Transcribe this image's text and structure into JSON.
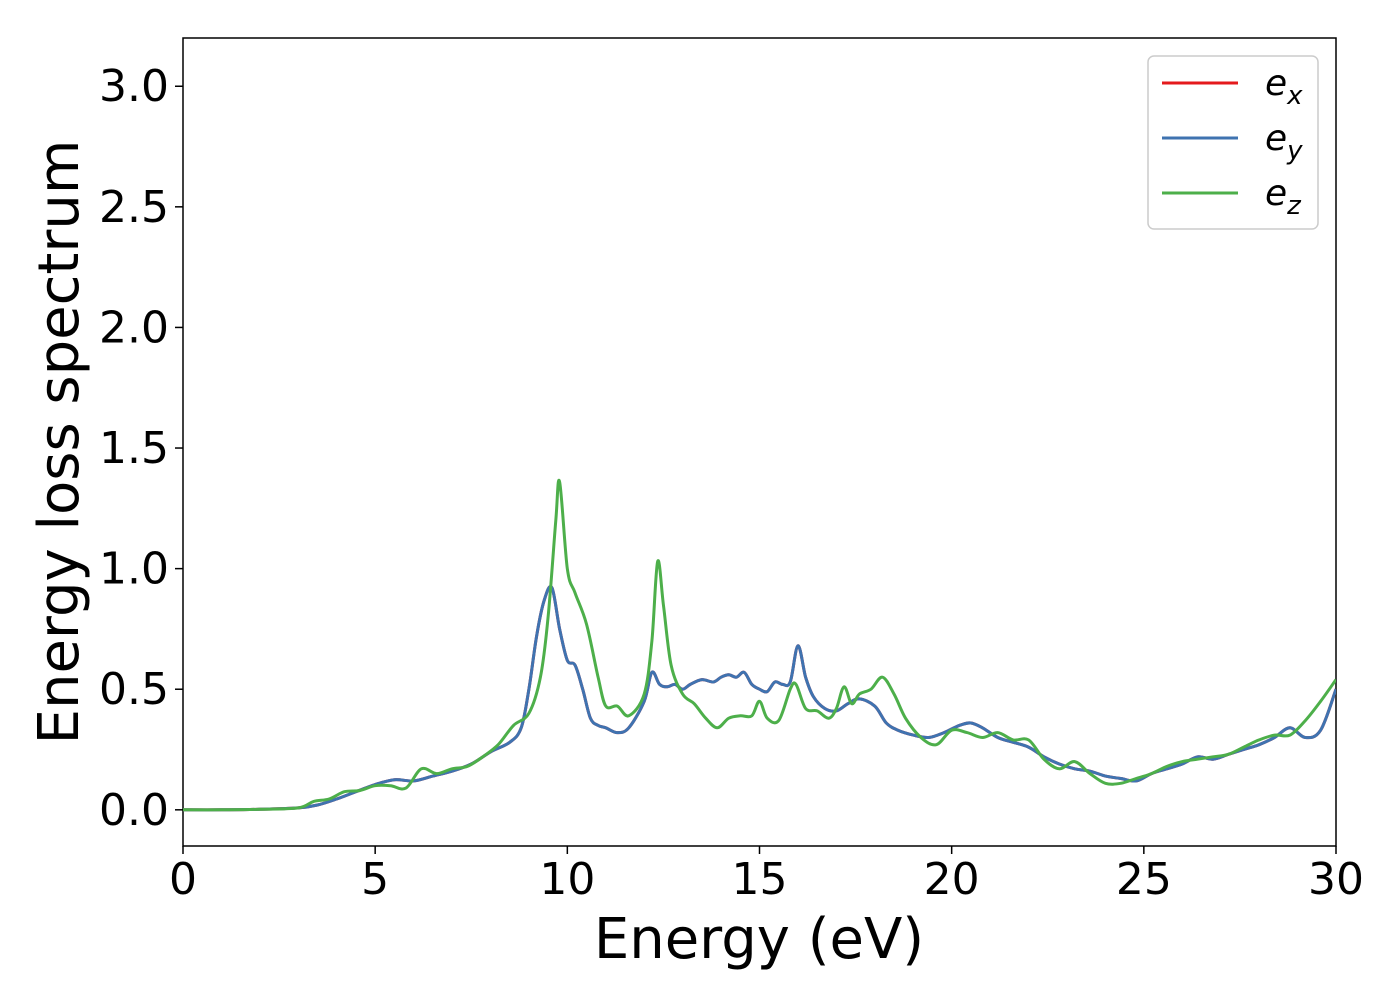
{
  "chart_data": {
    "type": "line",
    "title": "",
    "xlabel": "Energy (eV)",
    "ylabel": "Energy loss spectrum",
    "xlim": [
      0,
      30
    ],
    "ylim": [
      -0.15,
      3.2
    ],
    "xticks": [
      "0",
      "5",
      "10",
      "15",
      "20",
      "25",
      "30"
    ],
    "yticks": [
      "0.0",
      "0.5",
      "1.0",
      "1.5",
      "2.0",
      "2.5",
      "3.0"
    ],
    "grid": false,
    "legend_position": "top-right",
    "series": [
      {
        "name": "e_x",
        "label_base": "e",
        "label_sub": "x",
        "color": "#e41a1c",
        "x": [
          0,
          1,
          2,
          3,
          3.5,
          4,
          4.5,
          5,
          5.5,
          6,
          6.5,
          7,
          7.5,
          8,
          8.5,
          8.8,
          9,
          9.2,
          9.4,
          9.6,
          9.8,
          10,
          10.2,
          10.4,
          10.6,
          10.8,
          11,
          11.3,
          11.6,
          12,
          12.2,
          12.4,
          12.6,
          12.8,
          13,
          13.2,
          13.5,
          13.8,
          14,
          14.2,
          14.4,
          14.6,
          14.8,
          15,
          15.2,
          15.4,
          15.6,
          15.8,
          16,
          16.2,
          16.4,
          16.7,
          17,
          17.3,
          17.6,
          18,
          18.3,
          18.6,
          19,
          19.4,
          19.8,
          20.2,
          20.5,
          20.8,
          21.2,
          21.6,
          22,
          22.4,
          22.8,
          23.2,
          23.6,
          24,
          24.4,
          24.8,
          25.2,
          25.6,
          26,
          26.4,
          26.8,
          27.2,
          27.6,
          28,
          28.4,
          28.8,
          29.2,
          29.6,
          30
        ],
        "y": [
          0,
          0,
          0.002,
          0.008,
          0.02,
          0.045,
          0.075,
          0.105,
          0.125,
          0.12,
          0.14,
          0.16,
          0.19,
          0.24,
          0.28,
          0.34,
          0.5,
          0.72,
          0.87,
          0.92,
          0.75,
          0.62,
          0.6,
          0.5,
          0.38,
          0.35,
          0.34,
          0.32,
          0.34,
          0.45,
          0.57,
          0.52,
          0.51,
          0.52,
          0.5,
          0.52,
          0.54,
          0.53,
          0.55,
          0.56,
          0.55,
          0.57,
          0.52,
          0.5,
          0.49,
          0.53,
          0.52,
          0.53,
          0.68,
          0.55,
          0.47,
          0.42,
          0.41,
          0.44,
          0.46,
          0.43,
          0.36,
          0.33,
          0.31,
          0.3,
          0.32,
          0.35,
          0.36,
          0.34,
          0.3,
          0.28,
          0.26,
          0.22,
          0.19,
          0.17,
          0.16,
          0.14,
          0.13,
          0.12,
          0.15,
          0.17,
          0.19,
          0.22,
          0.21,
          0.23,
          0.25,
          0.27,
          0.3,
          0.34,
          0.3,
          0.33,
          0.5
        ]
      },
      {
        "name": "e_y",
        "label_base": "e",
        "label_sub": "y",
        "color": "#3f73b0",
        "x": [
          0,
          1,
          2,
          3,
          3.5,
          4,
          4.5,
          5,
          5.5,
          6,
          6.5,
          7,
          7.5,
          8,
          8.5,
          8.8,
          9,
          9.2,
          9.4,
          9.6,
          9.8,
          10,
          10.2,
          10.4,
          10.6,
          10.8,
          11,
          11.3,
          11.6,
          12,
          12.2,
          12.4,
          12.6,
          12.8,
          13,
          13.2,
          13.5,
          13.8,
          14,
          14.2,
          14.4,
          14.6,
          14.8,
          15,
          15.2,
          15.4,
          15.6,
          15.8,
          16,
          16.2,
          16.4,
          16.7,
          17,
          17.3,
          17.6,
          18,
          18.3,
          18.6,
          19,
          19.4,
          19.8,
          20.2,
          20.5,
          20.8,
          21.2,
          21.6,
          22,
          22.4,
          22.8,
          23.2,
          23.6,
          24,
          24.4,
          24.8,
          25.2,
          25.6,
          26,
          26.4,
          26.8,
          27.2,
          27.6,
          28,
          28.4,
          28.8,
          29.2,
          29.6,
          30
        ],
        "y": [
          0,
          0,
          0.002,
          0.008,
          0.02,
          0.045,
          0.075,
          0.105,
          0.125,
          0.12,
          0.14,
          0.16,
          0.19,
          0.24,
          0.28,
          0.34,
          0.5,
          0.72,
          0.87,
          0.92,
          0.75,
          0.62,
          0.6,
          0.5,
          0.38,
          0.35,
          0.34,
          0.32,
          0.34,
          0.45,
          0.57,
          0.52,
          0.51,
          0.52,
          0.5,
          0.52,
          0.54,
          0.53,
          0.55,
          0.56,
          0.55,
          0.57,
          0.52,
          0.5,
          0.49,
          0.53,
          0.52,
          0.53,
          0.68,
          0.55,
          0.47,
          0.42,
          0.41,
          0.44,
          0.46,
          0.43,
          0.36,
          0.33,
          0.31,
          0.3,
          0.32,
          0.35,
          0.36,
          0.34,
          0.3,
          0.28,
          0.26,
          0.22,
          0.19,
          0.17,
          0.16,
          0.14,
          0.13,
          0.12,
          0.15,
          0.17,
          0.19,
          0.22,
          0.21,
          0.23,
          0.25,
          0.27,
          0.3,
          0.34,
          0.3,
          0.33,
          0.5
        ]
      },
      {
        "name": "e_z",
        "label_base": "e",
        "label_sub": "z",
        "color": "#4daf4a",
        "x": [
          0,
          1,
          2,
          3,
          3.4,
          3.8,
          4.2,
          4.6,
          5,
          5.4,
          5.8,
          6.2,
          6.6,
          7,
          7.4,
          7.8,
          8.2,
          8.6,
          9,
          9.3,
          9.5,
          9.7,
          9.8,
          10,
          10.2,
          10.5,
          10.8,
          11,
          11.3,
          11.6,
          12,
          12.2,
          12.35,
          12.5,
          12.7,
          13,
          13.3,
          13.6,
          13.9,
          14.2,
          14.5,
          14.8,
          15,
          15.2,
          15.5,
          15.8,
          15.95,
          16.2,
          16.5,
          16.8,
          17,
          17.2,
          17.4,
          17.6,
          17.9,
          18.2,
          18.5,
          18.8,
          19.2,
          19.6,
          20,
          20.4,
          20.8,
          21.2,
          21.6,
          22,
          22.4,
          22.8,
          23.2,
          23.6,
          24,
          24.4,
          24.8,
          25.2,
          25.6,
          26,
          26.4,
          26.8,
          27.2,
          27.6,
          28,
          28.4,
          28.8,
          29.2,
          29.6,
          30
        ],
        "y": [
          0,
          0,
          0.002,
          0.008,
          0.035,
          0.045,
          0.075,
          0.08,
          0.1,
          0.1,
          0.09,
          0.17,
          0.15,
          0.17,
          0.18,
          0.22,
          0.27,
          0.35,
          0.4,
          0.55,
          0.8,
          1.2,
          1.36,
          1.0,
          0.9,
          0.77,
          0.55,
          0.43,
          0.43,
          0.39,
          0.48,
          0.7,
          1.03,
          0.85,
          0.6,
          0.48,
          0.44,
          0.38,
          0.34,
          0.38,
          0.39,
          0.39,
          0.45,
          0.38,
          0.37,
          0.5,
          0.52,
          0.42,
          0.41,
          0.38,
          0.42,
          0.51,
          0.44,
          0.48,
          0.5,
          0.55,
          0.48,
          0.38,
          0.3,
          0.27,
          0.33,
          0.32,
          0.3,
          0.32,
          0.29,
          0.29,
          0.21,
          0.17,
          0.2,
          0.15,
          0.11,
          0.11,
          0.13,
          0.15,
          0.18,
          0.2,
          0.21,
          0.22,
          0.23,
          0.26,
          0.29,
          0.31,
          0.31,
          0.37,
          0.45,
          0.54
        ]
      }
    ]
  }
}
